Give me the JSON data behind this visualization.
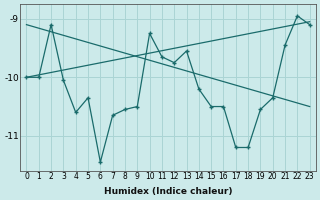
{
  "xlabel": "Humidex (Indice chaleur)",
  "background_color": "#cceaea",
  "grid_color": "#aad4d4",
  "line_color": "#1a6b6b",
  "line1_x": [
    0,
    1,
    2,
    3,
    4,
    5,
    6,
    7,
    8,
    9,
    10,
    11,
    12,
    13,
    14,
    15,
    16,
    17,
    18,
    19,
    20,
    21,
    22,
    23
  ],
  "line1_y": [
    -10.0,
    -10.0,
    -9.1,
    -10.05,
    -10.6,
    -10.35,
    -11.45,
    -10.65,
    -10.55,
    -10.5,
    -9.25,
    -9.65,
    -9.75,
    -9.55,
    -10.2,
    -10.5,
    -10.5,
    -11.2,
    -11.2,
    -10.55,
    -10.35,
    -9.45,
    -8.95,
    -9.1
  ],
  "line2_x": [
    0,
    23
  ],
  "line2_y": [
    -9.1,
    -10.5
  ],
  "line3_x": [
    0,
    23
  ],
  "line3_y": [
    -10.0,
    -9.05
  ],
  "ylim": [
    -11.6,
    -8.75
  ],
  "xlim": [
    -0.5,
    23.5
  ],
  "yticks": [
    -11,
    -10,
    -9
  ],
  "xticks": [
    0,
    1,
    2,
    3,
    4,
    5,
    6,
    7,
    8,
    9,
    10,
    11,
    12,
    13,
    14,
    15,
    16,
    17,
    18,
    19,
    20,
    21,
    22,
    23
  ],
  "tick_fontsize": 5.5,
  "xlabel_fontsize": 6.5
}
